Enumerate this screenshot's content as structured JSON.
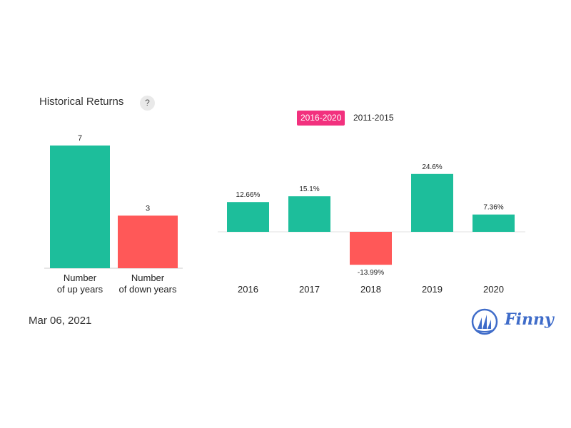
{
  "header": {
    "title": "Historical Returns",
    "help_label": "?"
  },
  "tabs": [
    {
      "label": "2016-2020",
      "active": true
    },
    {
      "label": "2011-2015",
      "active": false
    }
  ],
  "footer": {
    "date": "Mar 06, 2021",
    "brand": "Finny"
  },
  "colors": {
    "positive": "#1dbe9b",
    "negative": "#ff5858",
    "active_tab": "#f2317e",
    "brand": "#3f6cc9"
  },
  "chart_data": [
    {
      "type": "bar",
      "categories": [
        [
          "Number",
          "of up years"
        ],
        [
          "Number",
          "of down years"
        ]
      ],
      "values": [
        7,
        3
      ],
      "value_labels": [
        "7",
        "3"
      ],
      "colors": [
        "#1dbe9b",
        "#ff5858"
      ],
      "ylim": [
        0,
        7
      ],
      "grid": false
    },
    {
      "type": "bar",
      "categories": [
        "2016",
        "2017",
        "2018",
        "2019",
        "2020"
      ],
      "values": [
        12.66,
        15.1,
        -13.99,
        24.6,
        7.36
      ],
      "value_labels": [
        "12.66%",
        "15.1%",
        "-13.99%",
        "24.6%",
        "7.36%"
      ],
      "ylim": [
        -15,
        25
      ],
      "grid": false
    }
  ]
}
